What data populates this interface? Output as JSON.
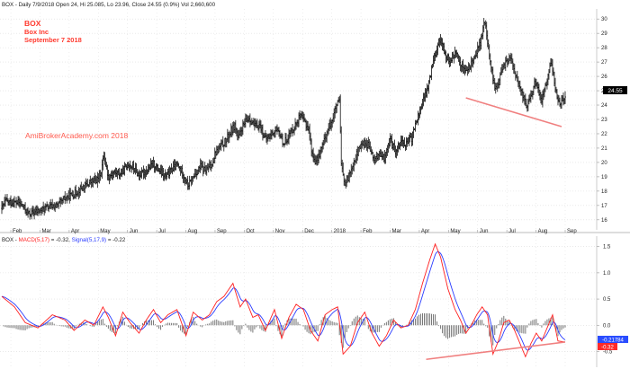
{
  "chart_data": [
    {
      "type": "bar",
      "subtype": "ohlc",
      "header": {
        "symbol": "BOX",
        "details": "Daily 7/9/2018 Open 24, Hi 25.085, Lo 23.96, Close 24.55 (0.9%) Vol 2,660,600"
      },
      "annotations": {
        "symbol": "BOX",
        "company": "Box Inc",
        "date": "September 7 2018",
        "watermark": "AmiBrokerAcademy.com  2018"
      },
      "x_ticks": [
        "Feb",
        "Mar",
        "Apr",
        "May",
        "Jun",
        "Jul",
        "Aug",
        "Sep",
        "Oct",
        "Nov",
        "Dec",
        "2018",
        "Feb",
        "Mar",
        "Apr",
        "May",
        "Jun",
        "Jul",
        "Aug",
        "Sep"
      ],
      "y_ticks": [
        16,
        17,
        18,
        19,
        20,
        21,
        22,
        23,
        24,
        25,
        26,
        27,
        28,
        29,
        30
      ],
      "ylim": [
        15.3,
        30.7
      ],
      "last_price": "24.55",
      "price_anchors": [
        {
          "t": 0,
          "v": 16.8
        },
        {
          "t": 4,
          "v": 17.3
        },
        {
          "t": 10,
          "v": 17.2
        },
        {
          "t": 19,
          "v": 17.2
        },
        {
          "t": 25,
          "v": 16.8
        },
        {
          "t": 30,
          "v": 16.4
        },
        {
          "t": 40,
          "v": 16.6
        },
        {
          "t": 52,
          "v": 16.9
        },
        {
          "t": 62,
          "v": 17.0
        },
        {
          "t": 72,
          "v": 17.6
        },
        {
          "t": 80,
          "v": 17.8
        },
        {
          "t": 88,
          "v": 18.2
        },
        {
          "t": 98,
          "v": 18.6
        },
        {
          "t": 106,
          "v": 18.8
        },
        {
          "t": 110,
          "v": 19.4
        },
        {
          "t": 113,
          "v": 20.5
        },
        {
          "t": 118,
          "v": 19.0
        },
        {
          "t": 124,
          "v": 19.3
        },
        {
          "t": 132,
          "v": 19.2
        },
        {
          "t": 140,
          "v": 19.9
        },
        {
          "t": 146,
          "v": 19.6
        },
        {
          "t": 152,
          "v": 19.1
        },
        {
          "t": 160,
          "v": 19.4
        },
        {
          "t": 168,
          "v": 19.9
        },
        {
          "t": 176,
          "v": 19.3
        },
        {
          "t": 182,
          "v": 19.0
        },
        {
          "t": 188,
          "v": 19.5
        },
        {
          "t": 194,
          "v": 19.8
        },
        {
          "t": 200,
          "v": 19.3
        },
        {
          "t": 206,
          "v": 18.4
        },
        {
          "t": 210,
          "v": 18.7
        },
        {
          "t": 214,
          "v": 19.2
        },
        {
          "t": 220,
          "v": 19.7
        },
        {
          "t": 226,
          "v": 19.4
        },
        {
          "t": 232,
          "v": 19.8
        },
        {
          "t": 236,
          "v": 20.6
        },
        {
          "t": 242,
          "v": 21.1
        },
        {
          "t": 248,
          "v": 21.5
        },
        {
          "t": 254,
          "v": 22.2
        },
        {
          "t": 258,
          "v": 22.6
        },
        {
          "t": 262,
          "v": 21.6
        },
        {
          "t": 266,
          "v": 22.4
        },
        {
          "t": 270,
          "v": 22.8
        },
        {
          "t": 274,
          "v": 23.1
        },
        {
          "t": 280,
          "v": 22.5
        },
        {
          "t": 286,
          "v": 22.6
        },
        {
          "t": 292,
          "v": 21.6
        },
        {
          "t": 296,
          "v": 21.8
        },
        {
          "t": 302,
          "v": 22.2
        },
        {
          "t": 308,
          "v": 22.0
        },
        {
          "t": 312,
          "v": 21.3
        },
        {
          "t": 318,
          "v": 21.9
        },
        {
          "t": 324,
          "v": 22.5
        },
        {
          "t": 330,
          "v": 23.2
        },
        {
          "t": 336,
          "v": 22.8
        },
        {
          "t": 340,
          "v": 22.3
        },
        {
          "t": 344,
          "v": 20.5
        },
        {
          "t": 348,
          "v": 20.0
        },
        {
          "t": 352,
          "v": 20.6
        },
        {
          "t": 356,
          "v": 21.3
        },
        {
          "t": 360,
          "v": 22.1
        },
        {
          "t": 366,
          "v": 23.0
        },
        {
          "t": 370,
          "v": 23.8
        },
        {
          "t": 374,
          "v": 24.3
        },
        {
          "t": 376,
          "v": 19.8
        },
        {
          "t": 380,
          "v": 18.4
        },
        {
          "t": 384,
          "v": 18.9
        },
        {
          "t": 388,
          "v": 19.8
        },
        {
          "t": 394,
          "v": 20.7
        },
        {
          "t": 400,
          "v": 21.4
        },
        {
          "t": 406,
          "v": 21.2
        },
        {
          "t": 412,
          "v": 20.2
        },
        {
          "t": 418,
          "v": 20.5
        },
        {
          "t": 424,
          "v": 20.3
        },
        {
          "t": 430,
          "v": 21.6
        },
        {
          "t": 436,
          "v": 20.8
        },
        {
          "t": 442,
          "v": 21.5
        },
        {
          "t": 448,
          "v": 21.3
        },
        {
          "t": 454,
          "v": 21.7
        },
        {
          "t": 458,
          "v": 22.6
        },
        {
          "t": 462,
          "v": 23.4
        },
        {
          "t": 466,
          "v": 24.2
        },
        {
          "t": 470,
          "v": 24.8
        },
        {
          "t": 474,
          "v": 25.8
        },
        {
          "t": 478,
          "v": 27.3
        },
        {
          "t": 482,
          "v": 28.0
        },
        {
          "t": 486,
          "v": 28.7
        },
        {
          "t": 490,
          "v": 27.6
        },
        {
          "t": 496,
          "v": 27.1
        },
        {
          "t": 502,
          "v": 27.6
        },
        {
          "t": 508,
          "v": 26.9
        },
        {
          "t": 514,
          "v": 26.4
        },
        {
          "t": 518,
          "v": 26.6
        },
        {
          "t": 522,
          "v": 27.2
        },
        {
          "t": 526,
          "v": 27.8
        },
        {
          "t": 530,
          "v": 28.3
        },
        {
          "t": 532,
          "v": 29.0
        },
        {
          "t": 535,
          "v": 29.8
        },
        {
          "t": 538,
          "v": 28.4
        },
        {
          "t": 542,
          "v": 26.6
        },
        {
          "t": 546,
          "v": 25.1
        },
        {
          "t": 550,
          "v": 25.6
        },
        {
          "t": 554,
          "v": 26.4
        },
        {
          "t": 558,
          "v": 26.9
        },
        {
          "t": 562,
          "v": 27.3
        },
        {
          "t": 566,
          "v": 26.8
        },
        {
          "t": 570,
          "v": 25.9
        },
        {
          "t": 574,
          "v": 25.1
        },
        {
          "t": 578,
          "v": 24.5
        },
        {
          "t": 582,
          "v": 23.9
        },
        {
          "t": 586,
          "v": 24.6
        },
        {
          "t": 590,
          "v": 25.5
        },
        {
          "t": 594,
          "v": 25.1
        },
        {
          "t": 598,
          "v": 24.4
        },
        {
          "t": 602,
          "v": 25.4
        },
        {
          "t": 606,
          "v": 26.2
        },
        {
          "t": 608,
          "v": 27.0
        },
        {
          "t": 611,
          "v": 26.2
        },
        {
          "t": 614,
          "v": 24.8
        },
        {
          "t": 618,
          "v": 24.1
        },
        {
          "t": 622,
          "v": 24.5
        },
        {
          "t": 624,
          "v": 24.55
        }
      ],
      "trendline": {
        "from": {
          "t": 514,
          "v": 24.5
        },
        "to": {
          "t": 620,
          "v": 22.5
        },
        "color": "#f08080"
      },
      "colors": {
        "bars": "#111111",
        "grid": "#dcdcdc",
        "label": "#ff3b30",
        "watermark": "#ff5a4e",
        "price_tag": "#000000"
      }
    },
    {
      "type": "line",
      "subtype": "macd",
      "legend": {
        "prefix": "BOX - ",
        "macd_label": "MACD(5,17)",
        "macd_value": " = -0.32, ",
        "signal_label": "Signal(5,17,9)",
        "signal_value": " = -0.22"
      },
      "y_ticks": [
        "-0.5",
        "0.0",
        "0.5",
        "1.0",
        "1.5"
      ],
      "ylim": [
        -0.8,
        1.7
      ],
      "value_tags": [
        {
          "text": "-0.21784",
          "color": "#2a4dff"
        },
        {
          "text": "-0.32",
          "color": "#ff2a2a"
        }
      ],
      "macd_anchors": [
        {
          "t": 0,
          "v": 0.55
        },
        {
          "t": 14,
          "v": 0.35
        },
        {
          "t": 26,
          "v": 0.05
        },
        {
          "t": 40,
          "v": -0.05
        },
        {
          "t": 56,
          "v": 0.2
        },
        {
          "t": 70,
          "v": 0.1
        },
        {
          "t": 80,
          "v": -0.1
        },
        {
          "t": 92,
          "v": 0.1
        },
        {
          "t": 102,
          "v": 0.0
        },
        {
          "t": 112,
          "v": 0.35
        },
        {
          "t": 118,
          "v": 0.15
        },
        {
          "t": 126,
          "v": -0.2
        },
        {
          "t": 134,
          "v": 0.25
        },
        {
          "t": 142,
          "v": 0.05
        },
        {
          "t": 152,
          "v": -0.15
        },
        {
          "t": 160,
          "v": 0.1
        },
        {
          "t": 168,
          "v": 0.3
        },
        {
          "t": 176,
          "v": 0.05
        },
        {
          "t": 184,
          "v": 0.2
        },
        {
          "t": 194,
          "v": 0.3
        },
        {
          "t": 204,
          "v": -0.2
        },
        {
          "t": 212,
          "v": 0.25
        },
        {
          "t": 222,
          "v": 0.1
        },
        {
          "t": 230,
          "v": 0.2
        },
        {
          "t": 238,
          "v": 0.45
        },
        {
          "t": 246,
          "v": 0.55
        },
        {
          "t": 256,
          "v": 0.8
        },
        {
          "t": 264,
          "v": 0.35
        },
        {
          "t": 270,
          "v": 0.5
        },
        {
          "t": 278,
          "v": 0.15
        },
        {
          "t": 284,
          "v": 0.2
        },
        {
          "t": 292,
          "v": -0.1
        },
        {
          "t": 302,
          "v": 0.3
        },
        {
          "t": 310,
          "v": -0.25
        },
        {
          "t": 318,
          "v": 0.15
        },
        {
          "t": 326,
          "v": 0.4
        },
        {
          "t": 334,
          "v": 0.3
        },
        {
          "t": 342,
          "v": -0.1
        },
        {
          "t": 350,
          "v": -0.3
        },
        {
          "t": 358,
          "v": 0.2
        },
        {
          "t": 366,
          "v": 0.3
        },
        {
          "t": 372,
          "v": 0.35
        },
        {
          "t": 378,
          "v": -0.55
        },
        {
          "t": 386,
          "v": -0.4
        },
        {
          "t": 394,
          "v": 0.05
        },
        {
          "t": 402,
          "v": 0.25
        },
        {
          "t": 410,
          "v": -0.15
        },
        {
          "t": 418,
          "v": -0.4
        },
        {
          "t": 426,
          "v": -0.2
        },
        {
          "t": 434,
          "v": 0.1
        },
        {
          "t": 442,
          "v": -0.05
        },
        {
          "t": 450,
          "v": 0.0
        },
        {
          "t": 458,
          "v": 0.3
        },
        {
          "t": 466,
          "v": 0.8
        },
        {
          "t": 474,
          "v": 1.25
        },
        {
          "t": 480,
          "v": 1.55
        },
        {
          "t": 486,
          "v": 1.3
        },
        {
          "t": 494,
          "v": 0.7
        },
        {
          "t": 502,
          "v": 0.3
        },
        {
          "t": 508,
          "v": 0.1
        },
        {
          "t": 514,
          "v": -0.15
        },
        {
          "t": 520,
          "v": 0.0
        },
        {
          "t": 526,
          "v": 0.2
        },
        {
          "t": 532,
          "v": 0.35
        },
        {
          "t": 538,
          "v": 0.2
        },
        {
          "t": 544,
          "v": -0.55
        },
        {
          "t": 550,
          "v": -0.3
        },
        {
          "t": 556,
          "v": 0.05
        },
        {
          "t": 562,
          "v": 0.1
        },
        {
          "t": 568,
          "v": -0.1
        },
        {
          "t": 574,
          "v": -0.35
        },
        {
          "t": 580,
          "v": -0.6
        },
        {
          "t": 586,
          "v": -0.35
        },
        {
          "t": 592,
          "v": -0.15
        },
        {
          "t": 598,
          "v": -0.3
        },
        {
          "t": 604,
          "v": -0.05
        },
        {
          "t": 610,
          "v": 0.2
        },
        {
          "t": 616,
          "v": -0.3
        },
        {
          "t": 624,
          "v": -0.32
        }
      ],
      "trendline": {
        "from": {
          "t": 470,
          "v": -0.65
        },
        "to": {
          "t": 624,
          "v": -0.32
        },
        "color": "#f08080"
      },
      "colors": {
        "macd": "#ff2020",
        "signal": "#2a3cff",
        "histogram": "#777777",
        "grid": "#dcdcdc"
      }
    }
  ]
}
